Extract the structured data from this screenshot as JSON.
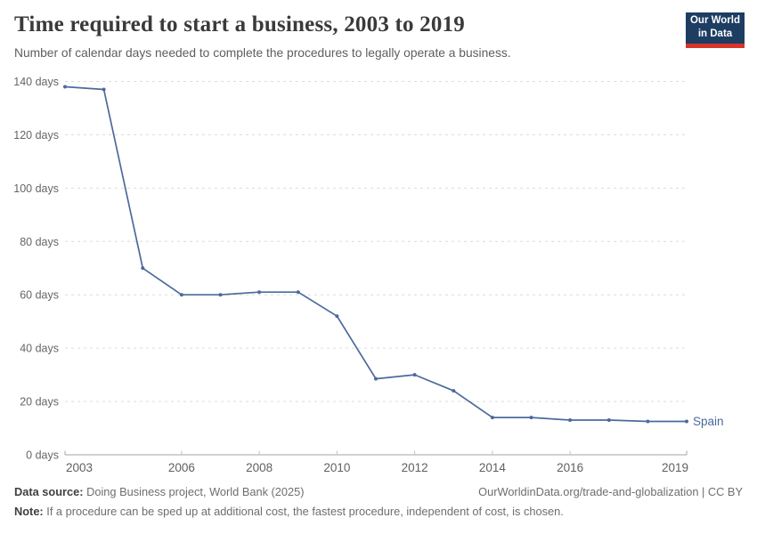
{
  "header": {
    "title": "Time required to start a business, 2003 to 2019",
    "subtitle": "Number of calendar days needed to complete the procedures to legally operate a business."
  },
  "logo": {
    "line1": "Our World",
    "line2": "in Data",
    "bg_color": "#1d3d63",
    "accent_color": "#d8352a"
  },
  "chart_data": {
    "type": "line",
    "title": "Time required to start a business, 2003 to 2019",
    "xlabel": "",
    "ylabel": "days",
    "x": [
      2003,
      2004,
      2005,
      2006,
      2007,
      2008,
      2009,
      2010,
      2011,
      2012,
      2013,
      2014,
      2015,
      2016,
      2017,
      2018,
      2019
    ],
    "series": [
      {
        "name": "Spain",
        "color": "#4C6A9C",
        "values": [
          138,
          137,
          70,
          60,
          60,
          61,
          61,
          52,
          28.5,
          30,
          24,
          14,
          14,
          13,
          13,
          12.5,
          12.5
        ]
      }
    ],
    "ylim": [
      0,
      140
    ],
    "ytick_step": 20,
    "ytick_suffix": " days",
    "xticks": [
      2003,
      2006,
      2008,
      2010,
      2012,
      2014,
      2016,
      2019
    ],
    "grid": "horizontal-dashed",
    "legend_position": "end-of-line-label",
    "grid_color": "#dcdcdc",
    "axis_color": "#a6a6a6",
    "tick_color": "#c2c2c2",
    "tick_label_color": "#606060"
  },
  "footer": {
    "datasource_label": "Data source:",
    "datasource_text": " Doing Business project, World Bank (2025)",
    "link_text": "OurWorldinData.org/trade-and-globalization | CC BY",
    "note_label": "Note:",
    "note_text": " If a procedure can be sped up at additional cost, the fastest procedure, independent of cost, is chosen."
  }
}
